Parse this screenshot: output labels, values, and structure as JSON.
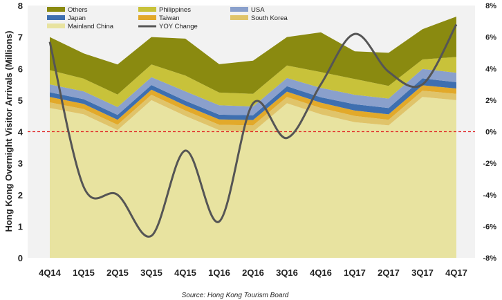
{
  "chart_data": {
    "type": "area",
    "stacked": true,
    "categories": [
      "4Q14",
      "1Q15",
      "2Q15",
      "3Q15",
      "4Q15",
      "1Q16",
      "2Q16",
      "3Q16",
      "4Q16",
      "1Q17",
      "2Q17",
      "3Q17",
      "4Q17"
    ],
    "ylabel": "Hong Kong Overnight Visitor Arrivals (Millions)",
    "ylim": [
      0,
      8
    ],
    "yticks": [
      "0",
      "1",
      "2",
      "3",
      "4",
      "5",
      "6",
      "7",
      "8"
    ],
    "y2lim": [
      -8,
      8
    ],
    "y2ticks": [
      "-8%",
      "-6%",
      "-4%",
      "-2%",
      "0%",
      "2%",
      "4%",
      "6%",
      "8%"
    ],
    "reference_line": {
      "axis": "y2",
      "value": 0,
      "color": "#e02020",
      "style": "dashed"
    },
    "grid": false,
    "legend_position": "top-left",
    "series": [
      {
        "name": "Mainland China",
        "color": "#e8e3a0",
        "values": [
          4.75,
          4.55,
          4.05,
          5.0,
          4.5,
          4.05,
          4.0,
          4.9,
          4.55,
          4.3,
          4.2,
          5.1,
          5.0
        ]
      },
      {
        "name": "South Korea",
        "color": "#e0c46a",
        "values": [
          0.18,
          0.17,
          0.17,
          0.17,
          0.17,
          0.17,
          0.2,
          0.2,
          0.2,
          0.2,
          0.18,
          0.2,
          0.2
        ]
      },
      {
        "name": "Taiwan",
        "color": "#e2a92a",
        "values": [
          0.17,
          0.16,
          0.16,
          0.16,
          0.16,
          0.17,
          0.17,
          0.17,
          0.17,
          0.17,
          0.17,
          0.17,
          0.17
        ]
      },
      {
        "name": "Japan",
        "color": "#3e6fb0",
        "values": [
          0.15,
          0.15,
          0.15,
          0.15,
          0.15,
          0.15,
          0.15,
          0.17,
          0.17,
          0.2,
          0.2,
          0.22,
          0.2
        ]
      },
      {
        "name": "USA",
        "color": "#8aa0cc",
        "values": [
          0.25,
          0.25,
          0.25,
          0.25,
          0.3,
          0.3,
          0.28,
          0.26,
          0.3,
          0.3,
          0.3,
          0.3,
          0.3
        ]
      },
      {
        "name": "Philippines",
        "color": "#c8c23a",
        "values": [
          0.45,
          0.4,
          0.4,
          0.4,
          0.5,
          0.4,
          0.4,
          0.4,
          0.5,
          0.5,
          0.4,
          0.3,
          0.5
        ]
      },
      {
        "name": "Others",
        "color": "#8a8a10",
        "values": [
          1.05,
          0.8,
          0.95,
          0.87,
          1.17,
          0.9,
          1.05,
          0.9,
          1.26,
          0.88,
          1.05,
          0.96,
          1.28
        ]
      }
    ],
    "line_series": {
      "name": "YOY Change",
      "axis": "y2",
      "color": "#555555",
      "values": [
        5.7,
        -3.5,
        -4.0,
        -6.6,
        -1.2,
        -5.7,
        1.8,
        -0.4,
        3.0,
        6.2,
        3.8,
        3.0,
        6.8
      ]
    },
    "source": "Source: Hong Kong Tourism Board"
  }
}
